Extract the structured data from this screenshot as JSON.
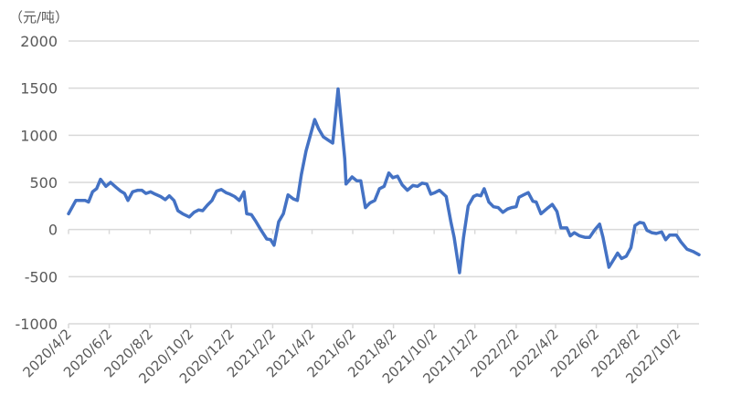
{
  "chart_data": {
    "type": "line",
    "title": "",
    "ylabel": "（元/吨）",
    "xlabel": "",
    "ylim": [
      -1000,
      2000
    ],
    "y_ticks": [
      "2000",
      "1500",
      "1000",
      "500",
      "0",
      "-500",
      "-1000"
    ],
    "y_tick_values": [
      2000,
      1500,
      1000,
      500,
      0,
      -500,
      -1000
    ],
    "x_ticks": [
      "2020/4/2",
      "2020/6/2",
      "2020/8/2",
      "2020/10/2",
      "2020/12/2",
      "2021/2/2",
      "2021/4/2",
      "2021/6/2",
      "2021/8/2",
      "2021/10/2",
      "2021/12/2",
      "2022/2/2",
      "2022/4/2",
      "2022/6/2",
      "2022/8/2",
      "2022/10/2"
    ],
    "xlim": [
      "2020-04-02",
      "2022-11-03"
    ],
    "grid": "horizontal",
    "legend": "none",
    "color": "#4472C4",
    "series": [
      {
        "points": [
          [
            "2020-04-02",
            167
          ],
          [
            "2020-04-13",
            308
          ],
          [
            "2020-04-27",
            308
          ],
          [
            "2020-05-02",
            292
          ],
          [
            "2020-05-08",
            400
          ],
          [
            "2020-05-14",
            433
          ],
          [
            "2020-05-20",
            533
          ],
          [
            "2020-05-28",
            458
          ],
          [
            "2020-06-04",
            500
          ],
          [
            "2020-06-12",
            450
          ],
          [
            "2020-06-19",
            408
          ],
          [
            "2020-06-25",
            383
          ],
          [
            "2020-06-30",
            308
          ],
          [
            "2020-07-07",
            400
          ],
          [
            "2020-07-15",
            417
          ],
          [
            "2020-07-21",
            417
          ],
          [
            "2020-07-27",
            383
          ],
          [
            "2020-08-03",
            400
          ],
          [
            "2020-08-10",
            375
          ],
          [
            "2020-08-18",
            350
          ],
          [
            "2020-08-25",
            317
          ],
          [
            "2020-08-31",
            358
          ],
          [
            "2020-09-07",
            308
          ],
          [
            "2020-09-13",
            200
          ],
          [
            "2020-09-20",
            167
          ],
          [
            "2020-09-30",
            133
          ],
          [
            "2020-10-07",
            183
          ],
          [
            "2020-10-14",
            208
          ],
          [
            "2020-10-20",
            200
          ],
          [
            "2020-10-27",
            258
          ],
          [
            "2020-11-03",
            308
          ],
          [
            "2020-11-10",
            408
          ],
          [
            "2020-11-17",
            425
          ],
          [
            "2020-11-24",
            392
          ],
          [
            "2020-11-30",
            375
          ],
          [
            "2020-12-07",
            350
          ],
          [
            "2020-12-14",
            308
          ],
          [
            "2020-12-21",
            400
          ],
          [
            "2020-12-25",
            167
          ],
          [
            "2021-01-01",
            158
          ],
          [
            "2021-01-08",
            83
          ],
          [
            "2021-01-15",
            0
          ],
          [
            "2021-01-24",
            -100
          ],
          [
            "2021-01-30",
            -108
          ],
          [
            "2021-02-04",
            -167
          ],
          [
            "2021-02-11",
            83
          ],
          [
            "2021-02-18",
            167
          ],
          [
            "2021-02-25",
            367
          ],
          [
            "2021-03-05",
            325
          ],
          [
            "2021-03-11",
            308
          ],
          [
            "2021-03-17",
            583
          ],
          [
            "2021-03-24",
            833
          ],
          [
            "2021-04-06",
            1167
          ],
          [
            "2021-04-12",
            1067
          ],
          [
            "2021-04-19",
            983
          ],
          [
            "2021-04-26",
            950
          ],
          [
            "2021-05-03",
            917
          ],
          [
            "2021-05-11",
            1492
          ],
          [
            "2021-05-21",
            750
          ],
          [
            "2021-05-23",
            483
          ],
          [
            "2021-06-01",
            558
          ],
          [
            "2021-06-08",
            517
          ],
          [
            "2021-06-14",
            517
          ],
          [
            "2021-06-21",
            233
          ],
          [
            "2021-06-28",
            283
          ],
          [
            "2021-07-05",
            308
          ],
          [
            "2021-07-12",
            433
          ],
          [
            "2021-07-19",
            458
          ],
          [
            "2021-07-26",
            600
          ],
          [
            "2021-08-01",
            550
          ],
          [
            "2021-08-08",
            567
          ],
          [
            "2021-08-15",
            475
          ],
          [
            "2021-08-23",
            417
          ],
          [
            "2021-08-31",
            467
          ],
          [
            "2021-09-07",
            458
          ],
          [
            "2021-09-14",
            492
          ],
          [
            "2021-09-21",
            483
          ],
          [
            "2021-09-27",
            375
          ],
          [
            "2021-10-03",
            392
          ],
          [
            "2021-10-10",
            417
          ],
          [
            "2021-10-20",
            350
          ],
          [
            "2021-10-27",
            83
          ],
          [
            "2021-11-01",
            -83
          ],
          [
            "2021-11-09",
            -458
          ],
          [
            "2021-11-15",
            -83
          ],
          [
            "2021-11-22",
            250
          ],
          [
            "2021-11-30",
            350
          ],
          [
            "2021-12-05",
            367
          ],
          [
            "2021-12-11",
            358
          ],
          [
            "2021-12-16",
            433
          ],
          [
            "2021-12-23",
            292
          ],
          [
            "2021-12-30",
            242
          ],
          [
            "2022-01-06",
            233
          ],
          [
            "2022-01-13",
            183
          ],
          [
            "2022-01-20",
            217
          ],
          [
            "2022-01-26",
            233
          ],
          [
            "2022-02-02",
            242
          ],
          [
            "2022-02-06",
            342
          ],
          [
            "2022-02-13",
            367
          ],
          [
            "2022-02-20",
            392
          ],
          [
            "2022-02-27",
            300
          ],
          [
            "2022-03-04",
            292
          ],
          [
            "2022-03-11",
            167
          ],
          [
            "2022-03-22",
            233
          ],
          [
            "2022-03-28",
            267
          ],
          [
            "2022-04-04",
            192
          ],
          [
            "2022-04-10",
            17
          ],
          [
            "2022-04-19",
            17
          ],
          [
            "2022-04-24",
            -67
          ],
          [
            "2022-04-30",
            -33
          ],
          [
            "2022-05-08",
            -67
          ],
          [
            "2022-05-16",
            -83
          ],
          [
            "2022-05-23",
            -83
          ],
          [
            "2022-05-31",
            0
          ],
          [
            "2022-06-07",
            58
          ],
          [
            "2022-06-12",
            -83
          ],
          [
            "2022-06-21",
            -400
          ],
          [
            "2022-06-29",
            -308
          ],
          [
            "2022-07-04",
            -250
          ],
          [
            "2022-07-10",
            -308
          ],
          [
            "2022-07-17",
            -283
          ],
          [
            "2022-07-24",
            -192
          ],
          [
            "2022-07-30",
            42
          ],
          [
            "2022-08-06",
            75
          ],
          [
            "2022-08-12",
            67
          ],
          [
            "2022-08-17",
            -8
          ],
          [
            "2022-08-24",
            -33
          ],
          [
            "2022-08-31",
            -42
          ],
          [
            "2022-09-08",
            -25
          ],
          [
            "2022-09-14",
            -108
          ],
          [
            "2022-09-20",
            -58
          ],
          [
            "2022-09-30",
            -58
          ],
          [
            "2022-10-07",
            -133
          ],
          [
            "2022-10-16",
            -208
          ],
          [
            "2022-10-25",
            -233
          ],
          [
            "2022-11-03",
            -267
          ]
        ]
      }
    ]
  }
}
